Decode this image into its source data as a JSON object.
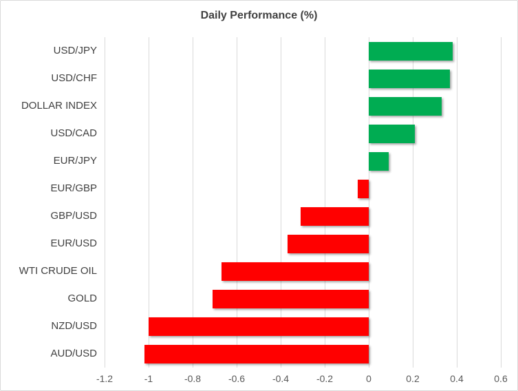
{
  "chart_data": {
    "type": "bar",
    "orientation": "horizontal",
    "title": "Daily Performance (%)",
    "categories": [
      "USD/JPY",
      "USD/CHF",
      "DOLLAR INDEX",
      "USD/CAD",
      "EUR/JPY",
      "EUR/GBP",
      "GBP/USD",
      "EUR/USD",
      "WTI CRUDE OIL",
      "GOLD",
      "NZD/USD",
      "AUD/USD"
    ],
    "values": [
      0.38,
      0.37,
      0.33,
      0.21,
      0.09,
      -0.05,
      -0.31,
      -0.37,
      -0.67,
      -0.71,
      -1.0,
      -1.02
    ],
    "xlabel": "",
    "ylabel": "",
    "xlim": [
      -1.2,
      0.6
    ],
    "xticks": [
      -1.2,
      -1.0,
      -0.8,
      -0.6,
      -0.4,
      -0.2,
      0,
      0.2,
      0.4,
      0.6
    ],
    "xtick_labels": [
      "-1.2",
      "-1",
      "-0.8",
      "-0.6",
      "-0.4",
      "-0.2",
      "0",
      "0.2",
      "0.4",
      "0.6"
    ],
    "grid": true,
    "legend": false,
    "positive_color": "#00AC52",
    "negative_color": "#FF0000",
    "gridline_color": "#d9d9d9",
    "title_color": "#404040",
    "label_color": "#404040",
    "tick_color": "#595959"
  }
}
